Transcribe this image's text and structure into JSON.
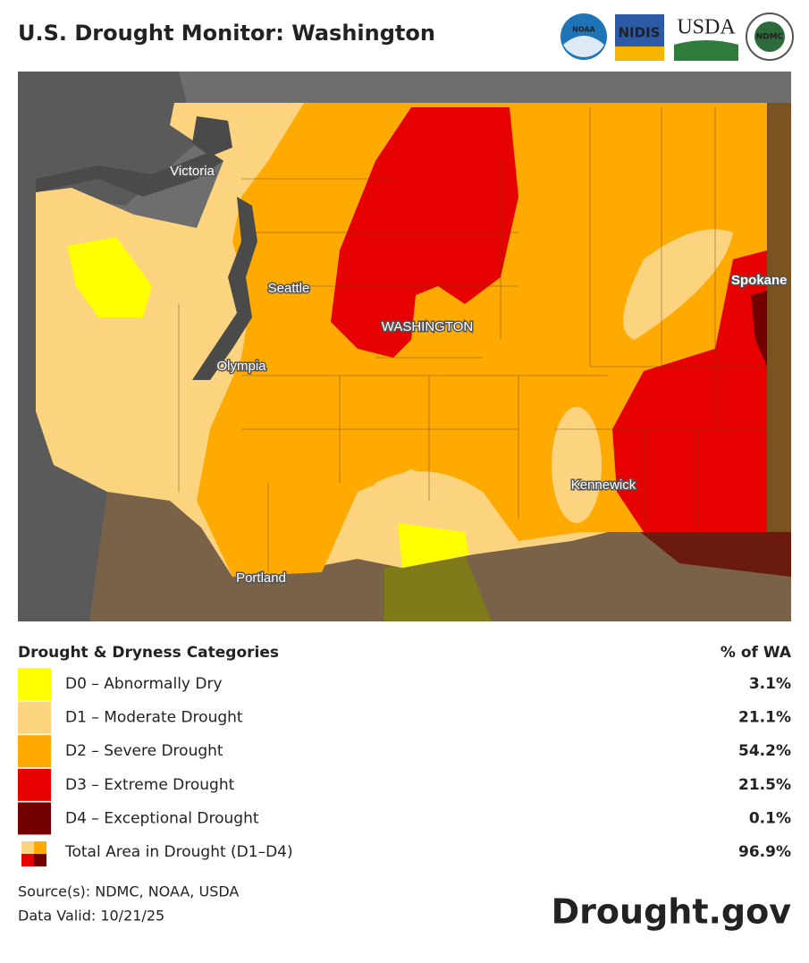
{
  "header": {
    "title": "U.S. Drought Monitor: Washington",
    "logos": [
      "NOAA",
      "NIDIS",
      "USDA",
      "NDMC"
    ]
  },
  "map": {
    "labels": [
      "Victoria",
      "Seattle",
      "WASHINGTON",
      "Olympia",
      "Kennewick",
      "Portland",
      "Spokane"
    ]
  },
  "legend": {
    "heading": "Drought & Dryness Categories",
    "column": "% of WA",
    "rows": [
      {
        "label": "D0 – Abnormally Dry",
        "value": "3.1%",
        "color": "#ffff00"
      },
      {
        "label": "D1 – Moderate Drought",
        "value": "21.1%",
        "color": "#fcd37f"
      },
      {
        "label": "D2 – Severe Drought",
        "value": "54.2%",
        "color": "#ffaa00"
      },
      {
        "label": "D3 – Extreme Drought",
        "value": "21.5%",
        "color": "#e60000"
      },
      {
        "label": "D4 – Exceptional Drought",
        "value": "0.1%",
        "color": "#730000"
      },
      {
        "label": "Total Area in Drought (D1–D4)",
        "value": "96.9%"
      }
    ]
  },
  "footer": {
    "source": "Source(s): NDMC, NOAA, USDA",
    "valid": "Data Valid: 10/21/25",
    "brand": "Drought.gov"
  }
}
